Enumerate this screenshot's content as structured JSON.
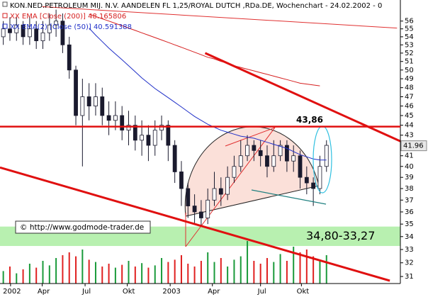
{
  "chart_data": {
    "type": "candlestick",
    "title": "KON.NED.PETROLEUM MIJ. N.V. AANDELEN FL 1,25/ROYAL DUTCH ,RDa.DE, Wochenchart - 24.02.2002 - 0",
    "log_scale": true,
    "xlim": [
      -0.5,
      60.2
    ],
    "ylim": [
      30.5,
      58.8
    ],
    "yticks": [
      31,
      32,
      33,
      34,
      35,
      36,
      37,
      38,
      39,
      40,
      41,
      42,
      43,
      44,
      45,
      46,
      47,
      48,
      49,
      50,
      51,
      52,
      53,
      54,
      55,
      56
    ],
    "xticks": [
      {
        "value": 1.1,
        "label": "2002"
      },
      {
        "value": 5.9,
        "label": "Apr"
      },
      {
        "value": 12.4,
        "label": "Jul"
      },
      {
        "value": 18.8,
        "label": "Okt"
      },
      {
        "value": 25.3,
        "label": "2003"
      },
      {
        "value": 31.7,
        "label": "Apr"
      },
      {
        "value": 39,
        "label": "Jul"
      },
      {
        "value": 45.2,
        "label": "Okt"
      }
    ],
    "up_color": "#ffffff",
    "down_color": "#1a1a2e",
    "volume_up_color": "#1a9a3a",
    "volume_down_color": "#e02020",
    "open": [
      54,
      55,
      54.5,
      55.5,
      54,
      55,
      53.5,
      54.5,
      55.5,
      56,
      53,
      50,
      45,
      47,
      46,
      47,
      45,
      44.5,
      45,
      43.5,
      44,
      42.5,
      43,
      42,
      43.5,
      44,
      42,
      39.5,
      38,
      36.5,
      36,
      35.5,
      37,
      38,
      37.5,
      39,
      40,
      41,
      42,
      41.5,
      41,
      40,
      41,
      42,
      40.5,
      41,
      39,
      38.5,
      38,
      40
    ],
    "high": [
      56,
      56.5,
      56.5,
      56,
      56.5,
      56,
      56,
      57,
      57.5,
      57,
      54,
      50.5,
      49,
      48.5,
      48.5,
      48,
      46.5,
      46.5,
      46,
      45.5,
      45,
      44.5,
      44,
      44.5,
      45,
      44.5,
      42.5,
      40.5,
      38.5,
      37.5,
      37,
      38,
      39.5,
      39,
      40,
      41,
      42.5,
      43,
      42.5,
      42.5,
      42,
      42.5,
      42.5,
      42.5,
      42,
      41.5,
      40,
      39,
      41,
      42.5
    ],
    "low": [
      53,
      53.5,
      53.5,
      53,
      53,
      52.5,
      52.5,
      53.5,
      54,
      52,
      49,
      44,
      40,
      44.5,
      45,
      44,
      43,
      43.5,
      42.5,
      42,
      41.5,
      41,
      40.5,
      41,
      42.5,
      40.5,
      38.5,
      36.5,
      35.5,
      35,
      34.8,
      35,
      36.5,
      36.5,
      37,
      38.5,
      39.5,
      40.5,
      40.5,
      40,
      39,
      39.5,
      40.5,
      39.5,
      39.5,
      38,
      37.5,
      36.5,
      37.5,
      39.5
    ],
    "close": [
      55,
      54.5,
      55.5,
      54,
      55,
      53.5,
      54.5,
      55.5,
      56,
      53,
      50,
      45,
      47,
      46,
      47,
      45,
      44.5,
      45,
      43.5,
      44,
      42.5,
      43,
      42,
      43.5,
      44,
      42,
      39.5,
      38,
      36.5,
      36,
      35.5,
      37,
      38,
      37.5,
      39,
      40,
      41,
      42,
      41.5,
      41,
      40,
      41,
      42,
      40.5,
      41,
      39,
      38.5,
      38,
      40,
      42
    ],
    "volume": [
      22,
      30,
      18,
      25,
      35,
      28,
      40,
      32,
      45,
      50,
      55,
      48,
      60,
      42,
      38,
      30,
      35,
      28,
      33,
      40,
      30,
      36,
      28,
      32,
      45,
      38,
      42,
      50,
      35,
      30,
      40,
      55,
      38,
      45,
      30,
      42,
      48,
      75,
      40,
      35,
      45,
      38,
      52,
      40,
      65,
      55,
      60,
      48,
      42,
      50
    ],
    "series": [
      {
        "name": "XX EMA [Close (200)] 48.165806",
        "color": "#d62020",
        "values": [
          null,
          null,
          null,
          null,
          null,
          null,
          null,
          null,
          null,
          null,
          null,
          null,
          null,
          56.9,
          56.6,
          56.3,
          56,
          55.7,
          55.4,
          55.1,
          54.8,
          54.5,
          54.2,
          53.9,
          53.6,
          53.3,
          53,
          52.7,
          52.4,
          52.1,
          51.8,
          51.5,
          51.3,
          51,
          50.8,
          50.5,
          50.3,
          50.1,
          49.9,
          49.7,
          49.5,
          49.3,
          49.1,
          48.9,
          48.7,
          48.5,
          48.4,
          48.3,
          48.2,
          null
        ]
      },
      {
        "name": "XX EMA(2) [Close (50)] 40.591388",
        "color": "#2030c8",
        "values": [
          null,
          null,
          null,
          null,
          null,
          null,
          null,
          null,
          null,
          null,
          null,
          null,
          null,
          55.1,
          54.2,
          53.4,
          52.6,
          51.9,
          51.2,
          50.5,
          49.8,
          49.1,
          48.5,
          47.9,
          47.4,
          46.9,
          46.4,
          45.9,
          45.4,
          44.9,
          44.5,
          44.1,
          43.8,
          43.5,
          43.3,
          43.1,
          42.9,
          42.8,
          42.7,
          42.5,
          42.3,
          42.1,
          41.9,
          41.7,
          41.4,
          41.1,
          40.9,
          40.7,
          40.6,
          40.6
        ]
      }
    ],
    "trendlines": [
      {
        "x": [
          5.9,
          59.7
        ],
        "values": [
          57.9,
          55.1
        ],
        "color": "#e03030",
        "width": 1
      },
      {
        "x": [
          30.6,
          60.2
        ],
        "values": [
          52.0,
          42.4
        ],
        "color": "#e01010",
        "width": 3
      },
      {
        "x": [
          -0.5,
          58.6
        ],
        "values": [
          39.9,
          30.7
        ],
        "color": "#e01010",
        "width": 3
      }
    ],
    "hline": {
      "value": 43.86,
      "label": "43,86",
      "color": "#e01010"
    },
    "band": {
      "hi": 34.8,
      "lo": 33.27,
      "label": "34,80-33,27",
      "color": "#b8f0b0"
    },
    "last_price": 41.96,
    "watermark": "© http://www.godmode-trader.de"
  }
}
